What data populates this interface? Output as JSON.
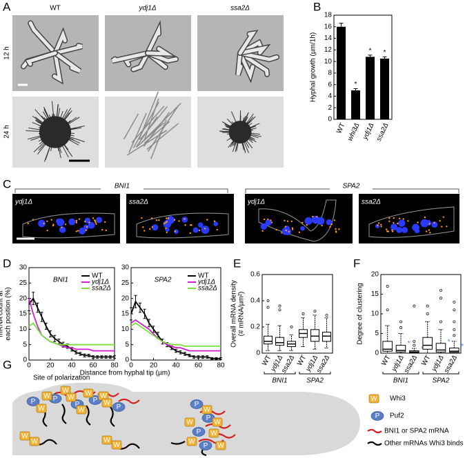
{
  "figure": {
    "panel_labels": [
      "A",
      "B",
      "C",
      "D",
      "E",
      "F",
      "G"
    ],
    "panel_a": {
      "columns": [
        "WT",
        "ydj1Δ",
        "ssa2Δ"
      ],
      "rows": [
        "12 h",
        "24 h"
      ]
    },
    "panel_c": {
      "groups": [
        "BNI1",
        "SPA2"
      ],
      "strains": [
        "ydj1Δ",
        "ssa2Δ"
      ]
    },
    "panel_g": {
      "title": "Site of polarization",
      "whi3_icon": "W",
      "puf2_icon": "P",
      "legend": [
        "Whi3",
        "Puf2",
        "BNI1 or SPA2 mRNA",
        "Other mRNAs Whi3 binds"
      ]
    }
  },
  "chart_data": [
    {
      "type": "bar",
      "ylabel": "Hyphal growth (µm/1h)",
      "categories": [
        "WT",
        "whi3Δ",
        "ydj1Δ",
        "ssa2Δ"
      ],
      "values": [
        16.0,
        5.0,
        10.8,
        10.5
      ],
      "errors": [
        0.6,
        0.3,
        0.3,
        0.3
      ],
      "significance": [
        null,
        "*",
        "*",
        "*"
      ],
      "color": "#000000",
      "ylim": [
        0,
        18
      ],
      "yticks": [
        0,
        2,
        4,
        6,
        8,
        10,
        12,
        14,
        16,
        18
      ]
    },
    {
      "type": "line",
      "title": "BNI1",
      "xlabel": "Distance from hyphal tip (µm)",
      "ylabel": [
        "mRNA count at",
        "each position (%)"
      ],
      "x": [
        0,
        4,
        8,
        12,
        16,
        20,
        24,
        28,
        32,
        36,
        40,
        44,
        48,
        52,
        56,
        60,
        64,
        68,
        72,
        76,
        80
      ],
      "series": [
        {
          "name": "WT",
          "color": "#000000",
          "values": [
            18,
            20,
            17,
            14,
            11,
            8.5,
            7,
            6,
            5,
            4.5,
            3.5,
            2.5,
            2,
            1.5,
            1.5,
            1,
            1,
            1,
            1,
            1,
            1
          ],
          "errors": [
            2,
            2,
            1.5,
            1.5,
            1,
            1,
            1,
            0.8,
            0.8,
            0.7,
            0.6,
            0.5,
            0.5,
            0.5,
            0.4,
            0.4,
            0.4,
            0.4,
            0.4,
            0.4,
            0.4
          ]
        },
        {
          "name": "ydj1Δ",
          "color": "#d21bd2",
          "values": [
            20,
            15,
            11,
            8,
            7,
            6,
            5.5,
            5,
            4.5,
            4,
            4,
            3.5,
            3.5,
            3.5,
            3.5,
            3,
            3,
            3,
            3,
            3,
            3
          ]
        },
        {
          "name": "ssa2Δ",
          "color": "#7be03c",
          "values": [
            11,
            12,
            10,
            8,
            7,
            6,
            5.5,
            5,
            5,
            5,
            5,
            5,
            5,
            5,
            5,
            5,
            5,
            5,
            5,
            5,
            5
          ]
        }
      ],
      "xlim": [
        0,
        80
      ],
      "xticks": [
        0,
        20,
        40,
        60,
        80
      ],
      "ylim": [
        0,
        30
      ],
      "yticks": [
        0,
        5,
        10,
        15,
        20,
        25,
        30
      ],
      "legend": "upper right"
    },
    {
      "type": "line",
      "title": "SPA2",
      "x": [
        0,
        4,
        8,
        12,
        16,
        20,
        24,
        28,
        32,
        36,
        40,
        44,
        48,
        52,
        56,
        60,
        64,
        68,
        72,
        76,
        80
      ],
      "series": [
        {
          "name": "WT",
          "color": "#000000",
          "values": [
            15,
            19,
            17,
            15,
            12,
            10,
            8,
            6,
            5,
            4,
            3,
            2.5,
            2,
            1.5,
            1,
            1,
            1,
            1,
            0.5,
            0.5,
            0.5
          ],
          "errors": [
            2,
            2,
            1.5,
            1.5,
            1.2,
            1,
            1,
            0.8,
            0.7,
            0.6,
            0.5,
            0.5,
            0.5,
            0.4,
            0.4,
            0.4,
            0.4,
            0.4,
            0.3,
            0.3,
            0.3
          ]
        },
        {
          "name": "ydj1Δ",
          "color": "#d21bd2",
          "values": [
            12,
            13,
            12,
            11,
            10,
            8.5,
            7,
            6,
            5,
            4.5,
            4,
            4,
            3.5,
            3,
            3,
            3,
            3,
            3,
            3,
            3,
            3
          ]
        },
        {
          "name": "ssa2Δ",
          "color": "#7be03c",
          "values": [
            11,
            12,
            11,
            10,
            9,
            8,
            7,
            6,
            5.5,
            5,
            5,
            5,
            4.5,
            4.5,
            4.5,
            4.5,
            4.5,
            4.5,
            4.5,
            4.5,
            4.5
          ]
        }
      ],
      "xlim": [
        0,
        80
      ],
      "xticks": [
        0,
        20,
        40,
        60,
        80
      ],
      "ylim": [
        0,
        30
      ],
      "yticks": [
        0,
        5,
        10,
        15,
        20,
        25,
        30
      ],
      "legend": "upper right"
    },
    {
      "type": "box",
      "ylabel": [
        "Overall mRNA density",
        "(# mRNA/µm²)"
      ],
      "groups": [
        {
          "name": "BNI1",
          "boxes": [
            {
              "category": "WT",
              "stats": [
                0.02,
                0.07,
                0.09,
                0.13,
                0.22
              ],
              "outliers": [
                0.35,
                0.4
              ]
            },
            {
              "category": "ydj1Δ",
              "stats": [
                0.02,
                0.06,
                0.08,
                0.12,
                0.21
              ],
              "outliers": [
                0.33,
                0.36
              ]
            },
            {
              "category": "ssa2Δ",
              "stats": [
                0.02,
                0.05,
                0.07,
                0.09,
                0.14
              ],
              "outliers": [
                0.2
              ]
            }
          ]
        },
        {
          "name": "SPA2",
          "boxes": [
            {
              "category": "WT",
              "stats": [
                0.05,
                0.12,
                0.15,
                0.18,
                0.27
              ],
              "outliers": [
                0.3
              ]
            },
            {
              "category": "ydj1Δ",
              "stats": [
                0.03,
                0.09,
                0.13,
                0.18,
                0.29
              ],
              "outliers": [
                0.32
              ]
            },
            {
              "category": "ssa2Δ",
              "stats": [
                0.04,
                0.09,
                0.13,
                0.16,
                0.27
              ],
              "outliers": [
                0.29
              ]
            }
          ]
        }
      ],
      "ylim": [
        0,
        0.6
      ],
      "yticks": [
        0,
        0.2,
        0.4,
        0.6
      ]
    },
    {
      "type": "box",
      "ylabel": "Degree of clustering",
      "groups": [
        {
          "name": "BNI1",
          "boxes": [
            {
              "category": "WT",
              "stats": [
                0,
                0.5,
                1,
                3,
                7
              ],
              "outliers": [
                11,
                17
              ]
            },
            {
              "category": "ydj1Δ",
              "stats": [
                0,
                0.3,
                0.7,
                2,
                5
              ],
              "outliers": [
                6.5,
                8
              ]
            },
            {
              "category": "ssa2Δ",
              "stats": [
                0,
                0.1,
                0.3,
                0.6,
                1.2
              ],
              "outliers": [
                2,
                3,
                12
              ]
            }
          ]
        },
        {
          "name": "SPA2",
          "boxes": [
            {
              "category": "WT",
              "stats": [
                0,
                1,
                2,
                4,
                8
              ],
              "outliers": [
                10,
                12
              ]
            },
            {
              "category": "ydj1Δ",
              "stats": [
                0,
                0.3,
                0.8,
                2.5,
                6
              ],
              "outliers": [
                8,
                14,
                16
              ]
            },
            {
              "category": "ssa2Δ",
              "stats": [
                0,
                0.2,
                0.5,
                1.3,
                3
              ],
              "outliers": [
                4.5,
                6,
                8,
                11,
                13
              ]
            }
          ]
        }
      ],
      "significance": [
        null,
        "*",
        "*",
        null,
        "*",
        "*"
      ],
      "significance_color": "#4a86e8",
      "ylim": [
        0,
        20
      ],
      "yticks": [
        0,
        5,
        10,
        15,
        20
      ]
    }
  ]
}
